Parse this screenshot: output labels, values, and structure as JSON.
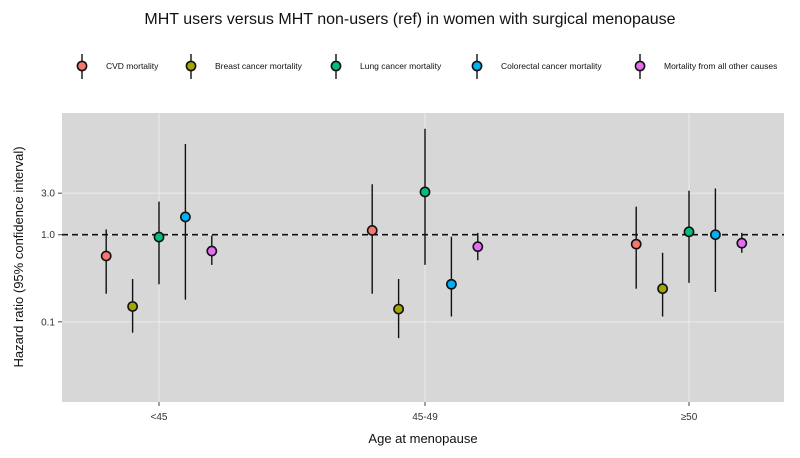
{
  "chart_data": {
    "type": "scatter",
    "title": "MHT users versus MHT non-users (ref) in women with surgical menopause",
    "xlabel": "Age at menopause",
    "ylabel": "Hazard ratio (95% confidence interval)",
    "y_scale": "log",
    "ylim": [
      0.012,
      25
    ],
    "y_ticks": [
      0.1,
      1.0,
      3.0
    ],
    "y_tick_labels": [
      "0.1",
      "1.0",
      "3.0"
    ],
    "reference_line": 1.0,
    "categories": [
      "<45",
      "45-49",
      "≥50"
    ],
    "legend_position": "top",
    "series": [
      {
        "name": "CVD mortality",
        "color": "#F8766D",
        "points": [
          {
            "y": 0.57,
            "lo": 0.21,
            "hi": 1.15
          },
          {
            "y": 1.12,
            "lo": 0.21,
            "hi": 3.8
          },
          {
            "y": 0.78,
            "lo": 0.24,
            "hi": 2.1
          }
        ]
      },
      {
        "name": "Breast cancer mortality",
        "color": "#A3A500",
        "points": [
          {
            "y": 0.15,
            "lo": 0.075,
            "hi": 0.31
          },
          {
            "y": 0.14,
            "lo": 0.065,
            "hi": 0.31
          },
          {
            "y": 0.24,
            "lo": 0.115,
            "hi": 0.62
          }
        ]
      },
      {
        "name": "Lung cancer mortality",
        "color": "#00BF7D",
        "points": [
          {
            "y": 0.94,
            "lo": 0.27,
            "hi": 2.4
          },
          {
            "y": 3.1,
            "lo": 0.45,
            "hi": 16.5
          },
          {
            "y": 1.08,
            "lo": 0.28,
            "hi": 3.2
          }
        ]
      },
      {
        "name": "Colorectal cancer mortality",
        "color": "#00B0F6",
        "points": [
          {
            "y": 1.6,
            "lo": 0.18,
            "hi": 11.0
          },
          {
            "y": 0.27,
            "lo": 0.115,
            "hi": 0.95
          },
          {
            "y": 1.0,
            "lo": 0.22,
            "hi": 3.4
          }
        ]
      },
      {
        "name": "Mortality from all other causes",
        "color": "#E76BF3",
        "points": [
          {
            "y": 0.65,
            "lo": 0.45,
            "hi": 0.98
          },
          {
            "y": 0.73,
            "lo": 0.51,
            "hi": 1.05
          },
          {
            "y": 0.8,
            "lo": 0.62,
            "hi": 1.05
          }
        ]
      }
    ]
  }
}
